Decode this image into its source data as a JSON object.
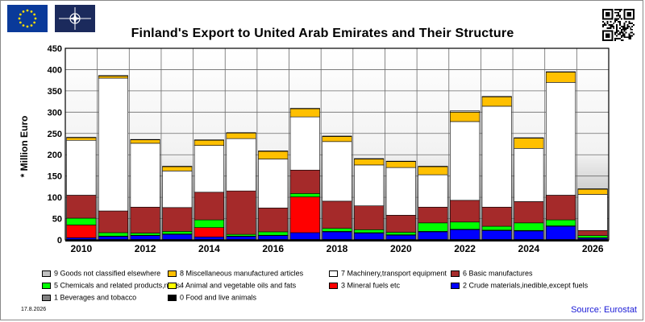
{
  "chart_data": {
    "type": "bar",
    "stacked": true,
    "title": "Finland's Export to United Arab Emirates and Their Structure",
    "ylabel": "* Million Euro",
    "xlabel": "",
    "ylim": [
      0,
      450
    ],
    "yticks": [
      0,
      50,
      100,
      150,
      200,
      250,
      300,
      350,
      400,
      450
    ],
    "grid": true,
    "categories": [
      "2010",
      "2011",
      "2012",
      "2013",
      "2014",
      "2015",
      "2016",
      "2017",
      "2018",
      "2019",
      "2020",
      "2021",
      "2022",
      "2023",
      "2024",
      "2025",
      "2026"
    ],
    "xtick_labels": [
      "2010",
      "",
      "2012",
      "",
      "2014",
      "",
      "2016",
      "",
      "2018",
      "",
      "2020",
      "",
      "2022",
      "",
      "2024",
      "",
      "2026"
    ],
    "series": [
      {
        "name": "0 Food and live animals",
        "color": "#000000",
        "values": [
          1,
          1,
          1,
          1,
          1,
          1,
          1,
          1,
          1,
          1,
          1,
          1,
          1,
          1,
          1,
          1,
          1
        ]
      },
      {
        "name": "1 Beverages and tobacco",
        "color": "#808080",
        "values": [
          0,
          0,
          0,
          0,
          0,
          0,
          0,
          0,
          0,
          0,
          0,
          0,
          0,
          0,
          0,
          0,
          0
        ]
      },
      {
        "name": "2 Crude materials,inedible,except fuels",
        "color": "#0000ff",
        "values": [
          4,
          7,
          9,
          12,
          6,
          7,
          9,
          16,
          18,
          15,
          10,
          18,
          23,
          21,
          20,
          31,
          3
        ]
      },
      {
        "name": "3 Mineral fuels etc",
        "color": "#ff0000",
        "values": [
          30,
          1,
          1,
          1,
          22,
          1,
          1,
          84,
          1,
          1,
          1,
          1,
          1,
          1,
          1,
          1,
          1
        ]
      },
      {
        "name": "4 Animal and vegetable oils and fats",
        "color": "#ffff00",
        "values": [
          0,
          0,
          0,
          0,
          0,
          0,
          0,
          0,
          0,
          0,
          0,
          0,
          0,
          0,
          0,
          0,
          0
        ]
      },
      {
        "name": "5 Chemicals and related products,n.e.s.",
        "color": "#00ff00",
        "values": [
          16,
          8,
          5,
          6,
          18,
          4,
          8,
          8,
          7,
          7,
          6,
          20,
          17,
          9,
          18,
          14,
          5
        ]
      },
      {
        "name": "6 Basic manufactures",
        "color": "#a52a2a",
        "values": [
          54,
          51,
          61,
          56,
          65,
          102,
          56,
          55,
          64,
          56,
          40,
          37,
          51,
          45,
          50,
          58,
          12
        ]
      },
      {
        "name": "7 Machinery,transport equipment",
        "color": "#ffffff",
        "values": [
          129,
          312,
          150,
          86,
          110,
          123,
          115,
          125,
          140,
          96,
          112,
          76,
          185,
          237,
          125,
          265,
          85
        ]
      },
      {
        "name": "8 Miscellaneous manufactured articles",
        "color": "#ffc000",
        "values": [
          6,
          5,
          8,
          10,
          12,
          13,
          18,
          19,
          12,
          14,
          14,
          19,
          22,
          22,
          24,
          24,
          12
        ]
      },
      {
        "name": "9 Goods not classified elsewhere",
        "color": "#c0c0c0",
        "values": [
          1,
          1,
          1,
          1,
          1,
          1,
          1,
          1,
          1,
          1,
          1,
          1,
          3,
          1,
          1,
          1,
          1
        ]
      }
    ]
  },
  "legend": {
    "items": [
      {
        "label": "9 Goods not classified elsewhere",
        "color": "#c0c0c0"
      },
      {
        "label": "8 Miscellaneous manufactured articles",
        "color": "#ffc000"
      },
      {
        "label": "7 Machinery,transport equipment",
        "color": "#ffffff"
      },
      {
        "label": "6 Basic manufactures",
        "color": "#a52a2a"
      },
      {
        "label": "5 Chemicals and related products,n.e.s.",
        "color": "#00ff00"
      },
      {
        "label": "4 Animal and vegetable oils and fats",
        "color": "#ffff00"
      },
      {
        "label": "3 Mineral fuels etc",
        "color": "#ff0000"
      },
      {
        "label": "2 Crude materials,inedible,except fuels",
        "color": "#0000ff"
      },
      {
        "label": "1 Beverages and tobacco",
        "color": "#808080"
      },
      {
        "label": "0 Food and live animals",
        "color": "#000000"
      }
    ]
  },
  "footer": {
    "date": "17.8.2026",
    "source": "Source: Eurostat"
  },
  "icons": {
    "eu_flag": "eu-flag-icon",
    "nato_flag": "nato-flag-icon",
    "qr": "qr-code-icon"
  }
}
